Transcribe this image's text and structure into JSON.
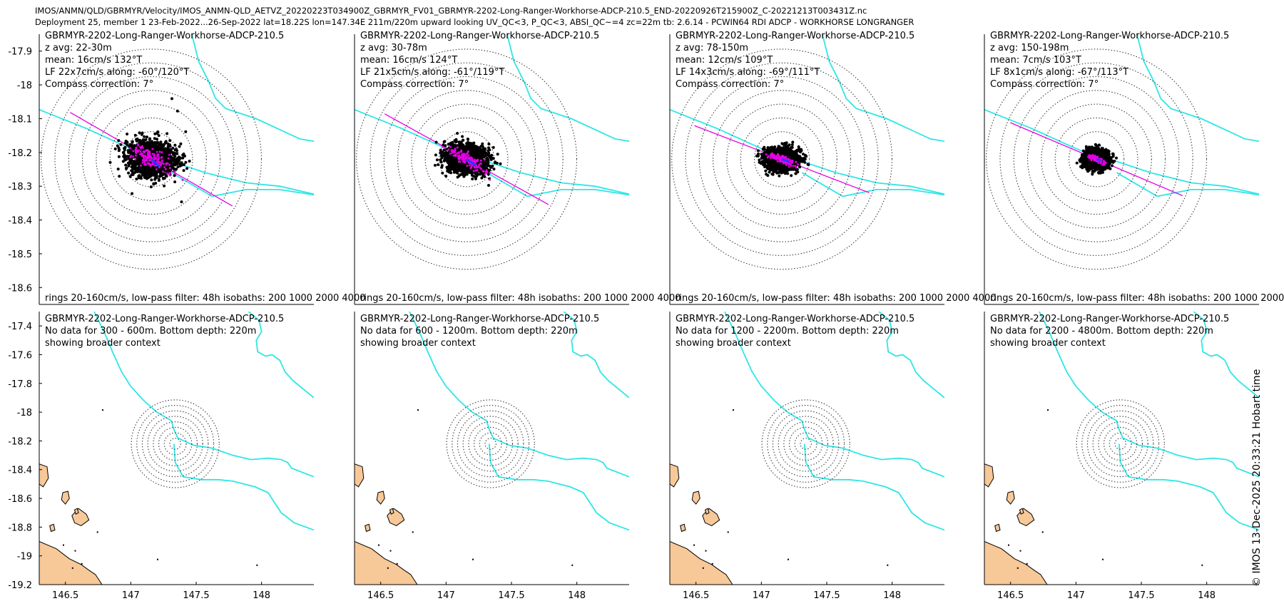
{
  "header": {
    "line1": "IMOS/ANMN/QLD/GBRMYR/Velocity/IMOS_ANMN-QLD_AETVZ_20220223T034900Z_GBRMYR_FV01_GBRMYR-2202-Long-Ranger-Workhorse-ADCP-210.5_END-20220926T215900Z_C-20221213T003431Z.nc",
    "line2": "Deployment 25, member 1 23-Feb-2022...26-Sep-2022 lat=18.22S lon=147.34E 211m/220m upward looking UV_QC<3, P_QC<3, ABSI_QC~=4 zc=22m tb: 2.6.14 - PCWIN64 RDI ADCP - WORKHORSE LONGRANGER"
  },
  "credit": "© IMOS 13-Dec-2025 20:33:21 Hobart time",
  "colors": {
    "ellipse_dots": "#000000",
    "lowpass_dots": "#e600e6",
    "mean_vector": "#1f3cff",
    "isobath": "#2ee6e6",
    "land": "#f7c898"
  },
  "chart_data": [
    {
      "type": "scatter",
      "panel": "top-1",
      "lines": [
        "GBRMYR-2202-Long-Ranger-Workhorse-ADCP-210.5",
        "z avg: 22-30m",
        "mean: 16cm/s 132°T",
        "LF 22x7cm/s along: -60°/120°T",
        "Compass correction: 7°"
      ],
      "footer": "rings 20-160cm/s, low-pass filter: 48h isobaths: 200 1000 2000 4000",
      "ylim": [
        -18.65,
        -17.85
      ],
      "yticks": [
        "-17.9",
        "-18",
        "-18.1",
        "-18.2",
        "-18.3",
        "-18.4",
        "-18.5",
        "-18.6"
      ],
      "ytick_values": [
        -17.9,
        -18.0,
        -18.1,
        -18.2,
        -18.3,
        -18.4,
        -18.5,
        -18.6
      ],
      "center": [
        147.34,
        -18.22
      ],
      "rings_cm_s": [
        20,
        40,
        60,
        80,
        100,
        120,
        140,
        160
      ],
      "mean_speed_cm_s": 16,
      "mean_dir_deg_true": 132,
      "lf_major_cm_s": 22,
      "lf_minor_cm_s": 7,
      "along_dir_deg_true": 120,
      "scatter_spread_cm_s": [
        32,
        22
      ],
      "outliers_cm_s": [
        [
          30,
          88
        ],
        [
          38,
          70
        ],
        [
          -28,
          -50
        ],
        [
          44,
          -62
        ],
        [
          50,
          40
        ],
        [
          -40,
          10
        ]
      ],
      "compass_correction_deg": 7
    },
    {
      "type": "scatter",
      "panel": "top-2",
      "lines": [
        "GBRMYR-2202-Long-Ranger-Workhorse-ADCP-210.5",
        "z avg: 30-78m",
        "mean: 16cm/s 124°T",
        "LF 21x5cm/s along: -61°/119°T",
        "Compass correction: 7°"
      ],
      "footer": "rings 20-160cm/s, low-pass filter: 48h isobaths: 200 1000 2000 4000",
      "ylim": [
        -18.65,
        -17.85
      ],
      "yticks": [],
      "ytick_values": [],
      "center": [
        147.34,
        -18.22
      ],
      "rings_cm_s": [
        20,
        40,
        60,
        80,
        100,
        120,
        140,
        160
      ],
      "mean_speed_cm_s": 16,
      "mean_dir_deg_true": 124,
      "lf_major_cm_s": 21,
      "lf_minor_cm_s": 5,
      "along_dir_deg_true": 119,
      "scatter_spread_cm_s": [
        28,
        18
      ],
      "outliers_cm_s": [
        [
          32,
          -38
        ],
        [
          -25,
          22
        ],
        [
          24,
          -24
        ]
      ],
      "compass_correction_deg": 7
    },
    {
      "type": "scatter",
      "panel": "top-3",
      "lines": [
        "GBRMYR-2202-Long-Ranger-Workhorse-ADCP-210.5",
        "z avg: 78-150m",
        "mean: 12cm/s 109°T",
        "LF 14x3cm/s along: -69°/111°T",
        "Compass correction: 7°"
      ],
      "footer": "rings 20-160cm/s, low-pass filter: 48h isobaths: 200 1000 2000 4000",
      "ylim": [
        -18.65,
        -17.85
      ],
      "yticks": [],
      "ytick_values": [],
      "center": [
        147.34,
        -18.22
      ],
      "rings_cm_s": [
        20,
        40,
        60,
        80,
        100,
        120,
        140,
        160
      ],
      "mean_speed_cm_s": 12,
      "mean_dir_deg_true": 109,
      "lf_major_cm_s": 14,
      "lf_minor_cm_s": 3,
      "along_dir_deg_true": 111,
      "scatter_spread_cm_s": [
        22,
        15
      ],
      "outliers_cm_s": [],
      "compass_correction_deg": 7
    },
    {
      "type": "scatter",
      "panel": "top-4",
      "lines": [
        "GBRMYR-2202-Long-Ranger-Workhorse-ADCP-210.5",
        "z avg: 150-198m",
        "mean: 7cm/s 103°T",
        "LF 8x1cm/s along: -67°/113°T",
        "Compass correction: 7°"
      ],
      "footer": "rings 20-160cm/s, low-pass filter: 48h isobaths: 200 1000 2000 4000",
      "ylim": [
        -18.65,
        -17.85
      ],
      "yticks": [],
      "ytick_values": [],
      "center": [
        147.34,
        -18.22
      ],
      "rings_cm_s": [
        20,
        40,
        60,
        80,
        100,
        120,
        140,
        160
      ],
      "mean_speed_cm_s": 7,
      "mean_dir_deg_true": 103,
      "lf_major_cm_s": 8,
      "lf_minor_cm_s": 1,
      "along_dir_deg_true": 113,
      "scatter_spread_cm_s": [
        16,
        12
      ],
      "outliers_cm_s": [],
      "compass_correction_deg": 7
    },
    {
      "type": "map",
      "panel": "bottom-1",
      "lines": [
        "GBRMYR-2202-Long-Ranger-Workhorse-ADCP-210.5",
        "No data for 300 - 600m. Bottom depth: 220m",
        "showing broader context"
      ],
      "xlim": [
        146.3,
        148.4
      ],
      "ylim": [
        -19.2,
        -17.3
      ],
      "xticks": [
        "146.5",
        "147",
        "147.5",
        "148"
      ],
      "xtick_values": [
        146.5,
        147.0,
        147.5,
        148.0
      ],
      "yticks": [
        "-17.4",
        "-17.6",
        "-17.8",
        "-18",
        "-18.2",
        "-18.4",
        "-18.6",
        "-18.8",
        "-19",
        "-19.2"
      ],
      "ytick_values": [
        -17.4,
        -17.6,
        -17.8,
        -18.0,
        -18.2,
        -18.4,
        -18.6,
        -18.8,
        -19.0,
        -19.2
      ],
      "center": [
        147.34,
        -18.22
      ],
      "rings_cm_s": [
        20,
        40,
        60,
        80,
        100,
        120,
        140,
        160
      ]
    },
    {
      "type": "map",
      "panel": "bottom-2",
      "lines": [
        "GBRMYR-2202-Long-Ranger-Workhorse-ADCP-210.5",
        "No data for 600 - 1200m. Bottom depth: 220m",
        "showing broader context"
      ],
      "xlim": [
        146.3,
        148.4
      ],
      "ylim": [
        -19.2,
        -17.3
      ],
      "xticks": [
        "146.5",
        "147",
        "147.5",
        "148"
      ],
      "xtick_values": [
        146.5,
        147.0,
        147.5,
        148.0
      ],
      "yticks": [],
      "ytick_values": [],
      "center": [
        147.34,
        -18.22
      ],
      "rings_cm_s": [
        20,
        40,
        60,
        80,
        100,
        120,
        140,
        160
      ]
    },
    {
      "type": "map",
      "panel": "bottom-3",
      "lines": [
        "GBRMYR-2202-Long-Ranger-Workhorse-ADCP-210.5",
        "No data for 1200 - 2200m. Bottom depth: 220m",
        "showing broader context"
      ],
      "xlim": [
        146.3,
        148.4
      ],
      "ylim": [
        -19.2,
        -17.3
      ],
      "xticks": [
        "146.5",
        "147",
        "147.5",
        "148"
      ],
      "xtick_values": [
        146.5,
        147.0,
        147.5,
        148.0
      ],
      "yticks": [],
      "ytick_values": [],
      "center": [
        147.34,
        -18.22
      ],
      "rings_cm_s": [
        20,
        40,
        60,
        80,
        100,
        120,
        140,
        160
      ]
    },
    {
      "type": "map",
      "panel": "bottom-4",
      "lines": [
        "GBRMYR-2202-Long-Ranger-Workhorse-ADCP-210.5",
        "No data for 2200 - 4800m. Bottom depth: 220m",
        "showing broader context"
      ],
      "xlim": [
        146.3,
        148.4
      ],
      "ylim": [
        -19.2,
        -17.3
      ],
      "xticks": [
        "146.5",
        "147",
        "147.5",
        "148"
      ],
      "xtick_values": [
        146.5,
        147.0,
        147.5,
        148.0
      ],
      "yticks": [],
      "ytick_values": [],
      "center": [
        147.34,
        -18.22
      ],
      "rings_cm_s": [
        20,
        40,
        60,
        80,
        100,
        120,
        140,
        160
      ]
    }
  ]
}
